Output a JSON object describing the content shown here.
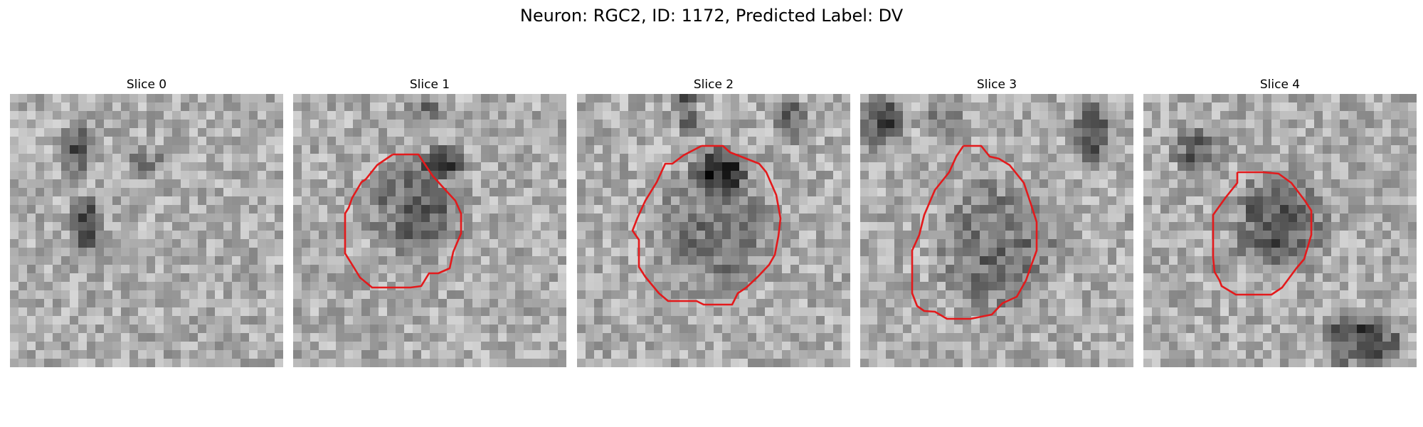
{
  "figure": {
    "title": "Neuron: RGC2, ID: 1172, Predicted Label: DV"
  },
  "panels": [
    {
      "title": "Slice 0",
      "has_contour": false,
      "contour_color": "#e31a1c"
    },
    {
      "title": "Slice 1",
      "has_contour": true,
      "contour_color": "#e31a1c"
    },
    {
      "title": "Slice 2",
      "has_contour": true,
      "contour_color": "#e31a1c"
    },
    {
      "title": "Slice 3",
      "has_contour": true,
      "contour_color": "#e31a1c"
    },
    {
      "title": "Slice 4",
      "has_contour": true,
      "contour_color": "#e31a1c"
    }
  ]
}
